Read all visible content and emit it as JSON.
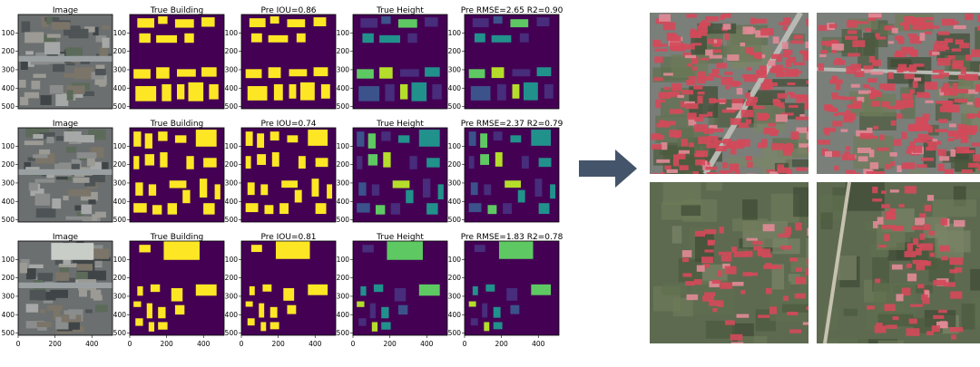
{
  "columns": [
    "Image",
    "True Building",
    "Pre IOU",
    "True Height",
    "Pre RMSE"
  ],
  "y_ticks": [
    "100",
    "200",
    "300",
    "400",
    "500"
  ],
  "x_ticks": [
    "0",
    "200",
    "400"
  ],
  "rows": [
    {
      "titles": [
        "Image",
        "True Building",
        "Pre IOU=0.86",
        "True Height",
        "Pre RMSE=2.65 R2=0.90"
      ],
      "iou": 0.86,
      "rmse": 2.65,
      "r2": 0.9
    },
    {
      "titles": [
        "Image",
        "True Building",
        "Pre IOU=0.74",
        "True Height",
        "Pre RMSE=2.37 R2=0.79"
      ],
      "iou": 0.74,
      "rmse": 2.37,
      "r2": 0.79
    },
    {
      "titles": [
        "Image",
        "True Building",
        "Pre IOU=0.81",
        "True Height",
        "Pre RMSE=1.83 R2=0.78"
      ],
      "iou": 0.81,
      "rmse": 1.83,
      "r2": 0.78
    }
  ],
  "colors": {
    "mask_bg": "#440154",
    "building": "#fde725",
    "height_low": "#3b528b",
    "height_mid": "#21918c",
    "height_high": "#5ec962",
    "height_top": "#b5de2b",
    "roof_red": "#d24a5a",
    "arrow": "#44546a"
  },
  "icons": {
    "arrow": "right-arrow-icon"
  }
}
